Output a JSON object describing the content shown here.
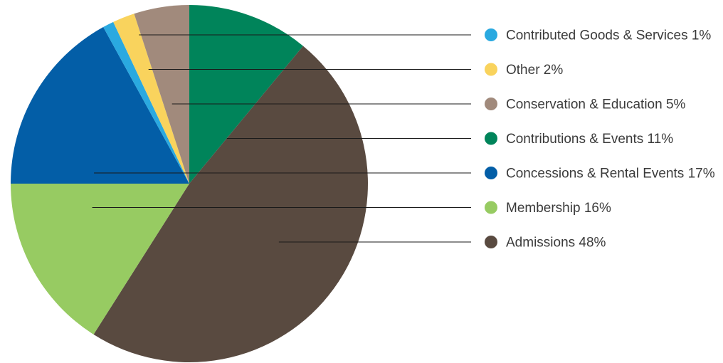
{
  "chart_data": {
    "type": "pie",
    "title": "",
    "start": "12 o'clock",
    "direction": "clockwise",
    "legend_position": "right",
    "slices": [
      {
        "label": "Contributions & Events 11%",
        "value": 11,
        "color": "#00845a"
      },
      {
        "label": "Admissions 48%",
        "value": 48,
        "color": "#594a40"
      },
      {
        "label": "Membership 16%",
        "value": 16,
        "color": "#97cb62"
      },
      {
        "label": "Concessions & Rental Events 17%",
        "value": 17,
        "color": "#035ea7"
      },
      {
        "label": "Contributed Goods & Services 1%",
        "value": 1,
        "color": "#2aa9e0"
      },
      {
        "label": "Other 2%",
        "value": 2,
        "color": "#f9d35d"
      },
      {
        "label": "Conservation & Education 5%",
        "value": 5,
        "color": "#a18a7c"
      }
    ],
    "legend_order": [
      "Contributed Goods & Services 1%",
      "Other 2%",
      "Conservation & Education 5%",
      "Contributions & Events 11%",
      "Concessions & Rental Events 17%",
      "Membership 16%",
      "Admissions 48%"
    ]
  }
}
